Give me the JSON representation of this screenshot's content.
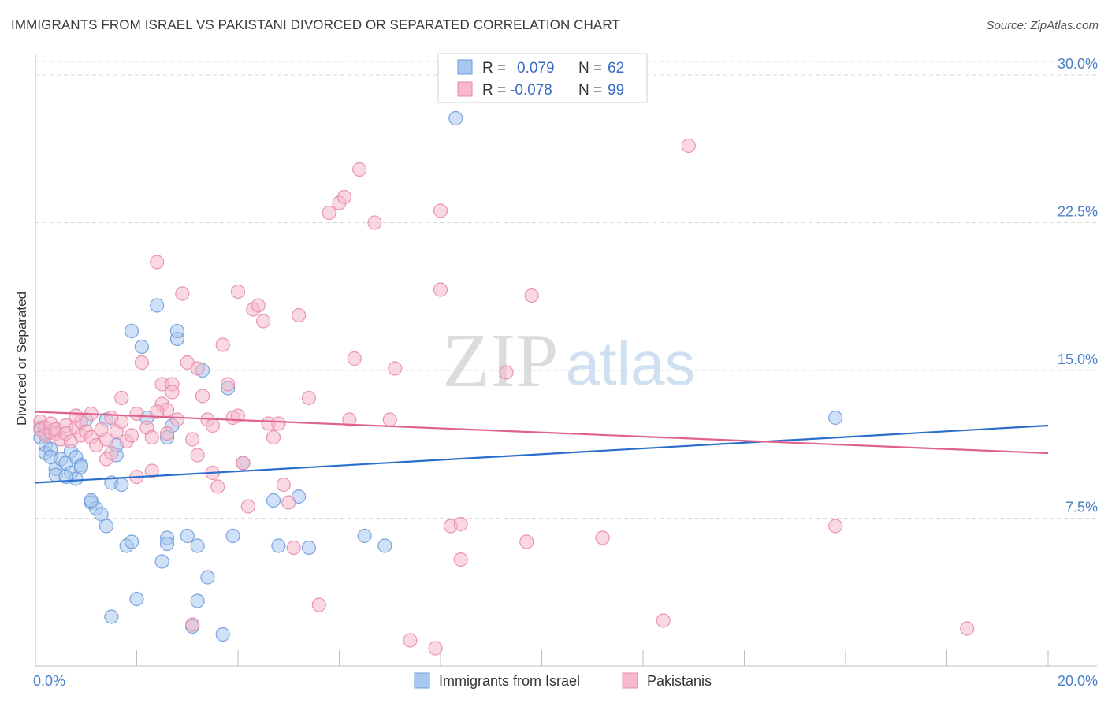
{
  "title": "IMMIGRANTS FROM ISRAEL VS PAKISTANI DIVORCED OR SEPARATED CORRELATION CHART",
  "source": "Source: ZipAtlas.com",
  "watermark": {
    "zip": "ZIP",
    "atlas": "atlas"
  },
  "colors": {
    "israel_fill": "#a9c8f0",
    "israel_stroke": "#6b9bd8",
    "israel_line": "#2a6fcc",
    "pakistani_fill": "#f6b8cb",
    "pakistani_stroke": "#e88aa8",
    "pakistani_line": "#e0608e",
    "tick": "#4a7fc8",
    "grid": "#d9d9d9"
  },
  "legend": {
    "rows": [
      {
        "r_label": "R =",
        "r_value": "0.079",
        "n_label": "N =",
        "n_value": "62"
      },
      {
        "r_label": "R =",
        "r_value": "-0.078",
        "n_label": "N =",
        "n_value": "99"
      }
    ]
  },
  "bottom_legend": [
    "Immigrants from Israel",
    "Pakistanis"
  ],
  "chart_data": {
    "type": "scatter",
    "ylabel": "Divorced or Separated",
    "xlabel": "",
    "xlim": [
      0,
      20
    ],
    "ylim": [
      0,
      31
    ],
    "x_tick_labels": [
      {
        "value": 0,
        "label": "0.0%"
      },
      {
        "value": 20,
        "label": "20.0%"
      }
    ],
    "y_tick_labels": [
      {
        "value": 7.5,
        "label": "7.5%"
      },
      {
        "value": 15,
        "label": "15.0%"
      },
      {
        "value": 22.5,
        "label": "22.5%"
      },
      {
        "value": 30,
        "label": "30.0%"
      }
    ],
    "grid": "horizontal dashed",
    "series": [
      {
        "name": "Immigrants from Israel",
        "trend": {
          "x": [
            0,
            20
          ],
          "y": [
            9.3,
            12.2
          ]
        },
        "points": [
          [
            0.1,
            12.1
          ],
          [
            0.1,
            11.6
          ],
          [
            0.2,
            11.8
          ],
          [
            0.2,
            11.2
          ],
          [
            0.2,
            10.8
          ],
          [
            0.3,
            11.0
          ],
          [
            0.3,
            10.6
          ],
          [
            0.4,
            10.0
          ],
          [
            0.4,
            9.7
          ],
          [
            0.5,
            10.5
          ],
          [
            0.6,
            10.3
          ],
          [
            0.7,
            9.8
          ],
          [
            0.7,
            10.9
          ],
          [
            0.8,
            9.5
          ],
          [
            0.8,
            10.6
          ],
          [
            0.9,
            10.2
          ],
          [
            1.0,
            12.5
          ],
          [
            1.1,
            8.3
          ],
          [
            1.2,
            8.0
          ],
          [
            1.3,
            7.7
          ],
          [
            1.4,
            7.1
          ],
          [
            1.5,
            9.3
          ],
          [
            1.6,
            10.7
          ],
          [
            1.6,
            11.2
          ],
          [
            1.7,
            9.2
          ],
          [
            1.8,
            6.1
          ],
          [
            1.9,
            6.3
          ],
          [
            2.0,
            3.4
          ],
          [
            1.5,
            2.5
          ],
          [
            1.9,
            17.0
          ],
          [
            2.1,
            16.2
          ],
          [
            2.2,
            12.6
          ],
          [
            2.4,
            18.3
          ],
          [
            2.5,
            5.3
          ],
          [
            2.6,
            6.5
          ],
          [
            2.6,
            6.2
          ],
          [
            2.6,
            11.6
          ],
          [
            2.7,
            12.2
          ],
          [
            2.8,
            16.6
          ],
          [
            2.8,
            17.0
          ],
          [
            3.0,
            6.6
          ],
          [
            3.1,
            2.0
          ],
          [
            3.2,
            3.3
          ],
          [
            3.2,
            6.1
          ],
          [
            3.3,
            15.0
          ],
          [
            3.4,
            4.5
          ],
          [
            3.7,
            1.6
          ],
          [
            3.8,
            14.1
          ],
          [
            3.9,
            6.6
          ],
          [
            4.1,
            10.3
          ],
          [
            4.7,
            8.4
          ],
          [
            4.8,
            6.1
          ],
          [
            5.2,
            8.6
          ],
          [
            5.4,
            6.0
          ],
          [
            6.5,
            6.6
          ],
          [
            6.9,
            6.1
          ],
          [
            8.3,
            27.8
          ],
          [
            15.8,
            12.6
          ],
          [
            1.1,
            8.4
          ],
          [
            0.9,
            10.1
          ],
          [
            1.4,
            12.5
          ],
          [
            0.6,
            9.6
          ]
        ]
      },
      {
        "name": "Pakistanis",
        "trend": {
          "x": [
            0,
            20
          ],
          "y": [
            12.9,
            10.8
          ]
        },
        "points": [
          [
            0.1,
            12.4
          ],
          [
            0.1,
            12.0
          ],
          [
            0.2,
            12.1
          ],
          [
            0.2,
            11.7
          ],
          [
            0.3,
            11.9
          ],
          [
            0.3,
            12.3
          ],
          [
            0.4,
            11.8
          ],
          [
            0.4,
            12.0
          ],
          [
            0.5,
            11.5
          ],
          [
            0.6,
            12.2
          ],
          [
            0.6,
            11.8
          ],
          [
            0.7,
            11.4
          ],
          [
            0.8,
            12.1
          ],
          [
            0.9,
            11.7
          ],
          [
            0.9,
            12.4
          ],
          [
            1.0,
            11.9
          ],
          [
            1.1,
            11.6
          ],
          [
            1.1,
            12.8
          ],
          [
            1.2,
            11.2
          ],
          [
            1.3,
            12.0
          ],
          [
            1.4,
            11.5
          ],
          [
            1.4,
            10.5
          ],
          [
            1.5,
            10.8
          ],
          [
            1.6,
            11.9
          ],
          [
            1.7,
            12.4
          ],
          [
            1.7,
            13.6
          ],
          [
            1.8,
            11.4
          ],
          [
            1.9,
            11.7
          ],
          [
            2.0,
            9.6
          ],
          [
            2.0,
            12.8
          ],
          [
            2.1,
            15.4
          ],
          [
            2.2,
            12.1
          ],
          [
            2.3,
            9.9
          ],
          [
            2.3,
            11.6
          ],
          [
            2.4,
            20.5
          ],
          [
            2.5,
            14.3
          ],
          [
            2.5,
            13.3
          ],
          [
            2.6,
            13.0
          ],
          [
            2.6,
            11.8
          ],
          [
            2.7,
            14.3
          ],
          [
            2.7,
            13.9
          ],
          [
            2.8,
            12.5
          ],
          [
            2.9,
            18.9
          ],
          [
            3.0,
            15.4
          ],
          [
            3.1,
            11.5
          ],
          [
            3.1,
            2.1
          ],
          [
            3.2,
            15.1
          ],
          [
            3.2,
            10.7
          ],
          [
            3.3,
            13.7
          ],
          [
            3.4,
            12.5
          ],
          [
            3.5,
            9.8
          ],
          [
            3.6,
            9.1
          ],
          [
            3.7,
            16.3
          ],
          [
            3.8,
            14.3
          ],
          [
            3.9,
            12.6
          ],
          [
            4.0,
            12.7
          ],
          [
            4.0,
            19.0
          ],
          [
            4.1,
            10.3
          ],
          [
            4.2,
            8.1
          ],
          [
            4.3,
            18.1
          ],
          [
            4.4,
            18.3
          ],
          [
            4.5,
            17.5
          ],
          [
            4.6,
            12.3
          ],
          [
            4.7,
            11.6
          ],
          [
            4.8,
            12.3
          ],
          [
            4.9,
            9.2
          ],
          [
            5.0,
            8.3
          ],
          [
            5.1,
            6.0
          ],
          [
            5.2,
            17.8
          ],
          [
            5.4,
            13.6
          ],
          [
            5.6,
            3.1
          ],
          [
            5.8,
            23.0
          ],
          [
            6.0,
            23.5
          ],
          [
            6.1,
            23.8
          ],
          [
            6.2,
            12.5
          ],
          [
            6.3,
            15.6
          ],
          [
            6.4,
            25.2
          ],
          [
            6.7,
            22.5
          ],
          [
            7.0,
            12.5
          ],
          [
            7.1,
            15.1
          ],
          [
            7.4,
            1.3
          ],
          [
            7.9,
            0.9
          ],
          [
            8.0,
            23.1
          ],
          [
            8.0,
            19.1
          ],
          [
            8.2,
            7.1
          ],
          [
            8.4,
            7.2
          ],
          [
            8.4,
            5.4
          ],
          [
            9.3,
            14.9
          ],
          [
            9.7,
            6.3
          ],
          [
            9.8,
            18.8
          ],
          [
            11.2,
            6.5
          ],
          [
            12.4,
            2.3
          ],
          [
            12.9,
            26.4
          ],
          [
            15.8,
            7.1
          ],
          [
            18.4,
            1.9
          ],
          [
            2.4,
            12.9
          ],
          [
            1.5,
            12.6
          ],
          [
            0.8,
            12.7
          ],
          [
            3.5,
            12.2
          ]
        ]
      }
    ]
  }
}
